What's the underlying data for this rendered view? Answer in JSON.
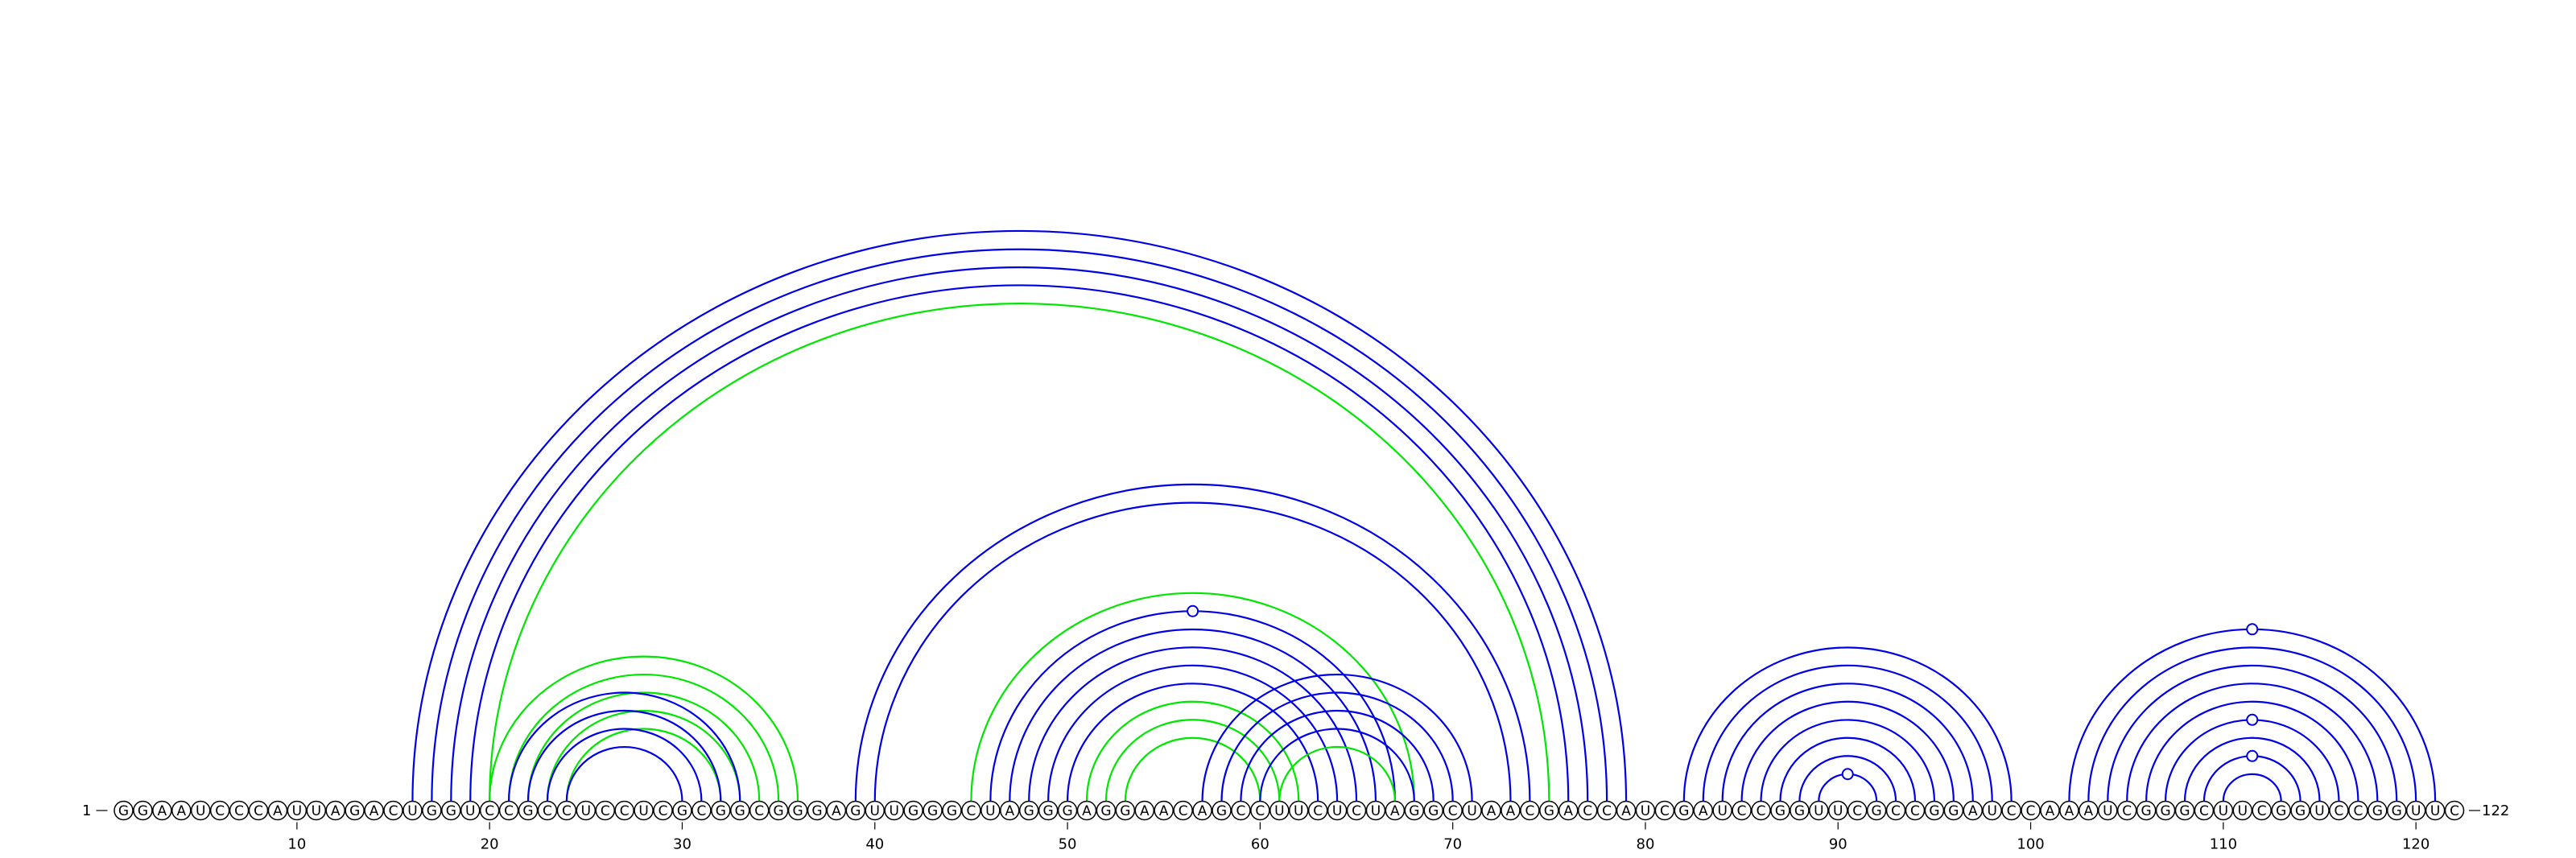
{
  "sequence": "GGAAUCCCAUUAGACUGGUCCGCCUCCUCGCGGCGGGAGUUGGGCUAGGGAGGAACAGCCUUCUCUAGGCUAACGACCAUCGAUCCGGUUCGCCGGAUCCAAAUCGGGCUUCGGUCCGGUUC",
  "start_label": "1",
  "end_label": "122",
  "tick_labels": [
    {
      "pos": 10,
      "label": "10"
    },
    {
      "pos": 20,
      "label": "20"
    },
    {
      "pos": 30,
      "label": "30"
    },
    {
      "pos": 40,
      "label": "40"
    },
    {
      "pos": 50,
      "label": "50"
    },
    {
      "pos": 60,
      "label": "60"
    },
    {
      "pos": 70,
      "label": "70"
    },
    {
      "pos": 80,
      "label": "80"
    },
    {
      "pos": 90,
      "label": "90"
    },
    {
      "pos": 100,
      "label": "100"
    },
    {
      "pos": 110,
      "label": "110"
    },
    {
      "pos": 120,
      "label": "120"
    }
  ],
  "colors": {
    "blue": "#0000e6",
    "green": "#00e600"
  },
  "arcs": [
    {
      "i": 16,
      "j": 79,
      "color": "blue"
    },
    {
      "i": 17,
      "j": 78,
      "color": "blue"
    },
    {
      "i": 18,
      "j": 77,
      "color": "blue"
    },
    {
      "i": 19,
      "j": 76,
      "color": "blue"
    },
    {
      "i": 20,
      "j": 75,
      "color": "green"
    },
    {
      "i": 20,
      "j": 36,
      "color": "green"
    },
    {
      "i": 21,
      "j": 35,
      "color": "green"
    },
    {
      "i": 22,
      "j": 34,
      "color": "green"
    },
    {
      "i": 23,
      "j": 33,
      "color": "green"
    },
    {
      "i": 24,
      "j": 32,
      "color": "green"
    },
    {
      "i": 21,
      "j": 33,
      "color": "blue"
    },
    {
      "i": 22,
      "j": 32,
      "color": "blue"
    },
    {
      "i": 23,
      "j": 31,
      "color": "blue"
    },
    {
      "i": 24,
      "j": 30,
      "color": "blue"
    },
    {
      "i": 39,
      "j": 74,
      "color": "blue"
    },
    {
      "i": 40,
      "j": 73,
      "color": "blue"
    },
    {
      "i": 45,
      "j": 68,
      "color": "green"
    },
    {
      "i": 46,
      "j": 67,
      "color": "blue"
    },
    {
      "i": 47,
      "j": 66,
      "color": "blue"
    },
    {
      "i": 48,
      "j": 65,
      "color": "blue"
    },
    {
      "i": 49,
      "j": 64,
      "color": "blue"
    },
    {
      "i": 50,
      "j": 63,
      "color": "blue"
    },
    {
      "i": 51,
      "j": 62,
      "color": "green"
    },
    {
      "i": 52,
      "j": 61,
      "color": "green"
    },
    {
      "i": 53,
      "j": 60,
      "color": "green"
    },
    {
      "i": 57,
      "j": 71,
      "color": "blue"
    },
    {
      "i": 58,
      "j": 70,
      "color": "blue"
    },
    {
      "i": 59,
      "j": 69,
      "color": "blue"
    },
    {
      "i": 60,
      "j": 68,
      "color": "blue"
    },
    {
      "i": 61,
      "j": 67,
      "color": "green"
    },
    {
      "i": 82,
      "j": 99,
      "color": "blue"
    },
    {
      "i": 83,
      "j": 98,
      "color": "blue"
    },
    {
      "i": 84,
      "j": 97,
      "color": "blue"
    },
    {
      "i": 85,
      "j": 96,
      "color": "blue"
    },
    {
      "i": 86,
      "j": 95,
      "color": "blue"
    },
    {
      "i": 87,
      "j": 94,
      "color": "blue"
    },
    {
      "i": 88,
      "j": 93,
      "color": "blue"
    },
    {
      "i": 89,
      "j": 92,
      "color": "blue"
    },
    {
      "i": 102,
      "j": 121,
      "color": "blue"
    },
    {
      "i": 103,
      "j": 120,
      "color": "blue"
    },
    {
      "i": 104,
      "j": 119,
      "color": "blue"
    },
    {
      "i": 105,
      "j": 118,
      "color": "blue"
    },
    {
      "i": 106,
      "j": 117,
      "color": "blue"
    },
    {
      "i": 107,
      "j": 116,
      "color": "blue"
    },
    {
      "i": 108,
      "j": 115,
      "color": "blue"
    },
    {
      "i": 109,
      "j": 114,
      "color": "blue"
    },
    {
      "i": 110,
      "j": 113,
      "color": "blue"
    }
  ],
  "apex_markers": [
    {
      "center": 56.5,
      "under_arc": [
        46,
        67
      ]
    },
    {
      "center": 90.5,
      "under_arc": [
        89,
        92
      ]
    },
    {
      "center": 111.5,
      "under_arc": [
        102,
        121
      ]
    },
    {
      "center": 111.5,
      "under_arc": [
        107,
        116
      ]
    },
    {
      "center": 111.5,
      "under_arc": [
        109,
        114
      ]
    }
  ]
}
